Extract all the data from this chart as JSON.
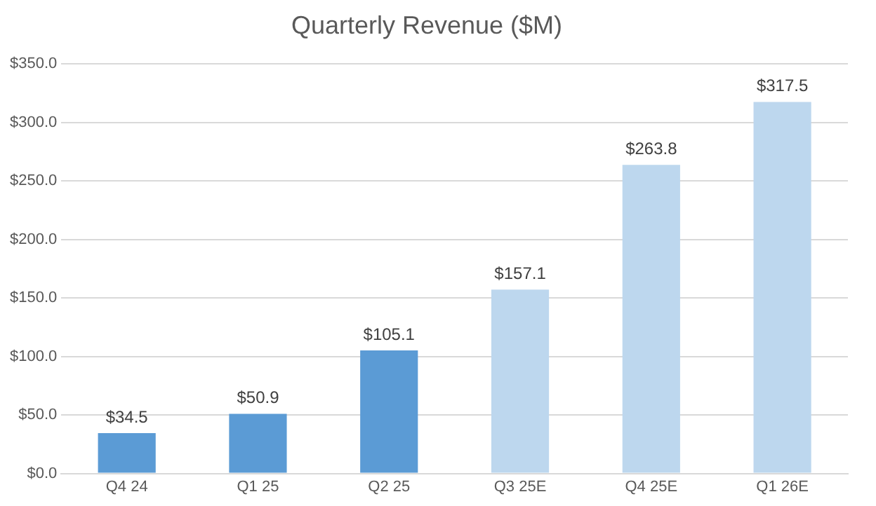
{
  "chart_data": {
    "type": "bar",
    "title": "Quarterly Revenue ($M)",
    "categories": [
      "Q4 24",
      "Q1 25",
      "Q2 25",
      "Q3 25E",
      "Q4 25E",
      "Q1 26E"
    ],
    "values": [
      34.5,
      50.9,
      105.1,
      157.1,
      263.8,
      317.5
    ],
    "colors": [
      "#5b9bd5",
      "#5b9bd5",
      "#5b9bd5",
      "#bdd7ee",
      "#bdd7ee",
      "#bdd7ee"
    ],
    "value_labels": [
      "$34.5",
      "$50.9",
      "$105.1",
      "$157.1",
      "$263.8",
      "$317.5"
    ],
    "ylim": [
      0,
      350
    ],
    "yticks": [
      {
        "value": 0,
        "label": "$0.0"
      },
      {
        "value": 50,
        "label": "$50.0"
      },
      {
        "value": 100,
        "label": "$100.0"
      },
      {
        "value": 150,
        "label": "$150.0"
      },
      {
        "value": 200,
        "label": "$200.0"
      },
      {
        "value": 250,
        "label": "$250.0"
      },
      {
        "value": 300,
        "label": "$300.0"
      },
      {
        "value": 350,
        "label": "$350.0"
      }
    ],
    "grid": "y",
    "legend": false
  }
}
